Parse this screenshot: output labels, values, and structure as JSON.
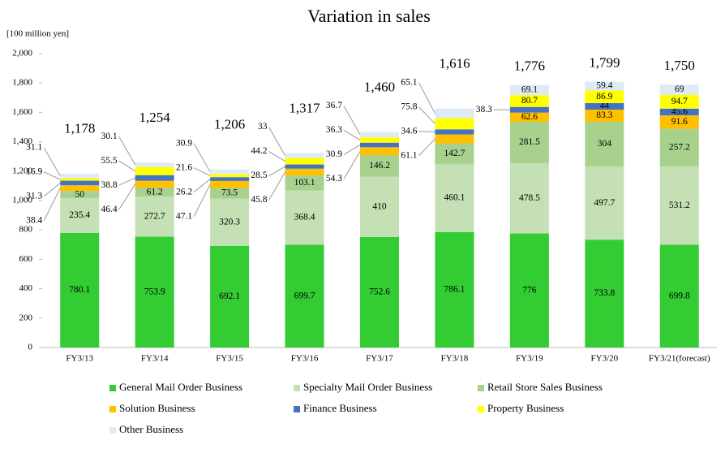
{
  "chart_data": {
    "type": "stacked_bar",
    "title": "Variation in sales",
    "y_axis_label": "[100 million yen]",
    "categories": [
      "FY3/13",
      "FY3/14",
      "FY3/15",
      "FY3/16",
      "FY3/17",
      "FY3/18",
      "FY3/19",
      "FY3/20",
      "FY3/21(forecast)"
    ],
    "series": [
      {
        "name": "General Mail Order Business",
        "color": "#33cc33",
        "values": [
          780.1,
          753.9,
          692.1,
          699.7,
          752.6,
          786.1,
          776.0,
          733.8,
          699.8
        ]
      },
      {
        "name": "Specialty Mail Order Business",
        "color": "#c5e0b4",
        "values": [
          235.4,
          272.7,
          320.3,
          368.4,
          410.0,
          460.1,
          478.5,
          497.7,
          531.2
        ]
      },
      {
        "name": "Retail Store Sales Business",
        "color": "#a9d18e",
        "values": [
          50.0,
          61.2,
          73.5,
          103.1,
          146.2,
          142.7,
          281.5,
          304.0,
          257.2
        ]
      },
      {
        "name": "Solution Business",
        "color": "#ffc000",
        "values": [
          38.4,
          46.4,
          47.1,
          45.8,
          54.3,
          61.1,
          62.6,
          83.3,
          91.6
        ]
      },
      {
        "name": "Finance Business",
        "color": "#4472c4",
        "values": [
          31.3,
          38.8,
          26.2,
          28.5,
          30.9,
          34.6,
          38.3,
          44.0,
          45.6
        ]
      },
      {
        "name": "Property Business",
        "color": "#ffff00",
        "values": [
          16.9,
          55.5,
          21.6,
          44.2,
          36.3,
          75.8,
          80.7,
          86.9,
          94.7
        ]
      },
      {
        "name": "Other Business",
        "color": "#deebf7",
        "values": [
          31.1,
          30.1,
          30.9,
          33.0,
          36.7,
          65.1,
          69.1,
          59.4,
          69.0
        ]
      }
    ],
    "totals": {
      "values": [
        1178,
        1254,
        1206,
        1317,
        1460,
        1616,
        1776,
        1799,
        1750
      ],
      "value_labels": [
        "1,178",
        "1,254",
        "1,206",
        "1,317",
        "1,460",
        "1,616",
        "1,776",
        "1,799",
        "1,750"
      ]
    },
    "ylim": [
      0,
      2000
    ],
    "yticks": [
      0,
      200,
      400,
      600,
      800,
      {
        "value": 1000,
        "label": "1,000"
      },
      {
        "value": 1200,
        "label": "1,200"
      },
      {
        "value": 1400,
        "label": "1,400"
      },
      {
        "value": 1600,
        "label": "1,600"
      },
      {
        "value": 1800,
        "label": "1,800"
      },
      {
        "value": 2000,
        "label": "2,000"
      }
    ],
    "legend": "bottom"
  }
}
